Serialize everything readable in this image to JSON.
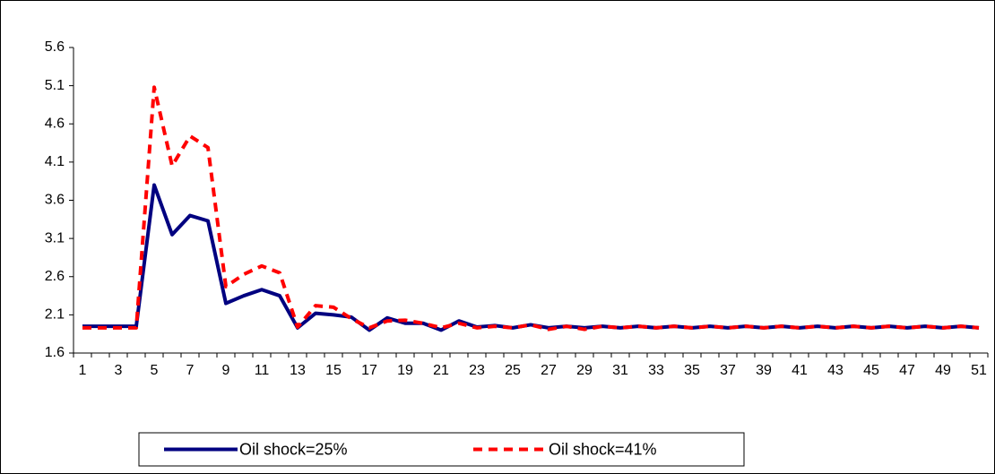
{
  "chart_data": {
    "type": "line",
    "categories": [
      1,
      null,
      3,
      null,
      5,
      null,
      7,
      null,
      9,
      null,
      11,
      null,
      13,
      null,
      15,
      null,
      17,
      null,
      19,
      null,
      21,
      null,
      23,
      null,
      25,
      null,
      27,
      null,
      29,
      null,
      31,
      null,
      33,
      null,
      35,
      null,
      37,
      null,
      39,
      null,
      41,
      null,
      43,
      null,
      45,
      null,
      47,
      null,
      49,
      null,
      51
    ],
    "series": [
      {
        "name": "Oil shock=25%",
        "color": "#000080",
        "dash": false,
        "values": [
          1.95,
          1.95,
          1.95,
          1.95,
          3.8,
          3.15,
          3.4,
          3.33,
          2.25,
          2.35,
          2.43,
          2.35,
          1.93,
          2.12,
          2.1,
          2.07,
          1.9,
          2.06,
          1.99,
          1.99,
          1.9,
          2.02,
          1.94,
          1.96,
          1.93,
          1.97,
          1.93,
          1.95,
          1.93,
          1.95,
          1.93,
          1.95,
          1.93,
          1.95,
          1.93,
          1.95,
          1.93,
          1.95,
          1.93,
          1.95,
          1.93,
          1.95,
          1.93,
          1.95,
          1.93,
          1.95,
          1.93,
          1.95,
          1.93,
          1.95,
          1.93
        ]
      },
      {
        "name": "Oil shock=41%",
        "color": "#ff0000",
        "dash": true,
        "values": [
          1.93,
          1.93,
          1.93,
          1.93,
          5.08,
          4.05,
          4.44,
          4.29,
          2.47,
          2.63,
          2.74,
          2.65,
          1.94,
          2.22,
          2.2,
          2.05,
          1.93,
          2.02,
          2.03,
          1.99,
          1.93,
          1.99,
          1.93,
          1.95,
          1.93,
          1.97,
          1.91,
          1.95,
          1.91,
          1.95,
          1.93,
          1.95,
          1.93,
          1.95,
          1.93,
          1.95,
          1.93,
          1.95,
          1.93,
          1.95,
          1.93,
          1.95,
          1.93,
          1.95,
          1.93,
          1.95,
          1.93,
          1.95,
          1.93,
          1.95,
          1.93
        ]
      }
    ],
    "ylim": [
      1.6,
      5.6
    ],
    "yticks": [
      1.6,
      2.1,
      2.6,
      3.1,
      3.6,
      4.1,
      4.6,
      5.1,
      5.6
    ],
    "legend": "bottom"
  }
}
